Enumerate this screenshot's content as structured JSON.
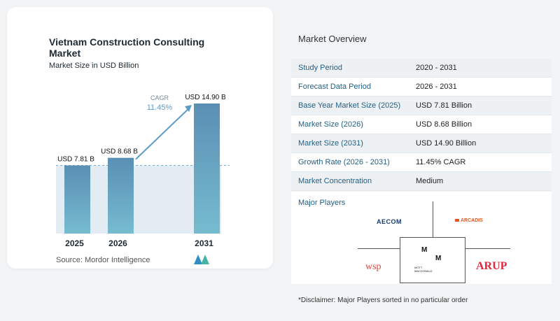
{
  "chart_data": {
    "type": "bar",
    "title": "Vietnam Construction Consulting Market",
    "subtitle": "Market Size in USD Billion",
    "categories": [
      "2025",
      "2026",
      "2031"
    ],
    "values": [
      7.81,
      8.68,
      14.9
    ],
    "data_labels": [
      "USD 7.81 B",
      "USD 8.68 B",
      "USD 14.90 B"
    ],
    "annotation": {
      "label": "CAGR",
      "value": "11.45%"
    },
    "ylim": [
      0,
      16
    ],
    "bar_color": "#5b93b6",
    "accent_color": "#5b9bc9",
    "source": "Source:  Mordor Intelligence"
  },
  "overview": {
    "title": "Market Overview",
    "rows": [
      {
        "label": "Study Period",
        "value": "2020 - 2031"
      },
      {
        "label": "Forecast Data Period",
        "value": "2026 - 2031"
      },
      {
        "label": "Base Year Market Size (2025)",
        "value": "USD 7.81 Billion"
      },
      {
        "label": "Market Size (2026)",
        "value": "USD 8.68 Billion"
      },
      {
        "label": "Market Size (2031)",
        "value": "USD 14.90 Billion"
      },
      {
        "label": "Growth Rate (2026 - 2031)",
        "value": "11.45% CAGR"
      },
      {
        "label": "Market Concentration",
        "value": "Medium"
      }
    ]
  },
  "players": {
    "title": "Major Players",
    "aecom": "AECOM",
    "arcadis": "ARCADIS",
    "wsp": "wsp",
    "arup": "ARUP",
    "mott": "MOTT MACDONALD"
  },
  "disclaimer": "*Disclaimer: Major Players sorted in no particular order"
}
